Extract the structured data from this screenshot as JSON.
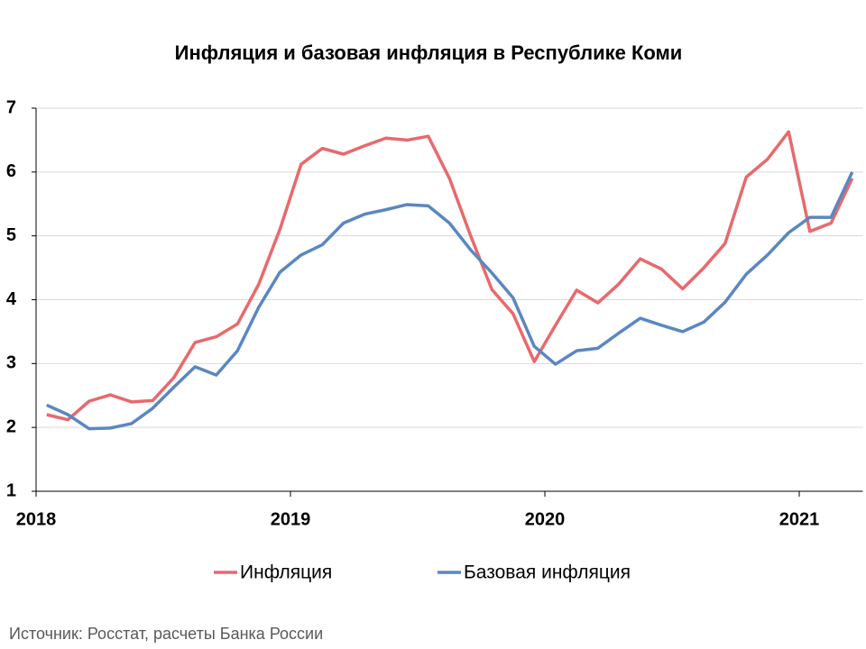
{
  "chart_data": {
    "type": "line",
    "title": "Инфляция и базовая инфляция в Республике Коми",
    "source": "Источник: Росстат, расчеты Банка России",
    "categories": [
      "2018",
      null,
      null,
      null,
      null,
      null,
      null,
      null,
      null,
      null,
      null,
      null,
      "2019",
      null,
      null,
      null,
      null,
      null,
      null,
      null,
      null,
      null,
      null,
      null,
      "2020",
      null,
      null,
      null,
      null,
      null,
      null,
      null,
      null,
      null,
      null,
      null,
      "2021",
      null,
      null
    ],
    "series": [
      {
        "name": "Инфляция",
        "color": "#e8696c",
        "values": [
          2.2,
          2.12,
          2.41,
          2.51,
          2.4,
          2.42,
          2.78,
          3.33,
          3.42,
          3.62,
          4.24,
          5.1,
          6.12,
          6.37,
          6.28,
          6.41,
          6.53,
          6.5,
          6.56,
          5.9,
          5.0,
          4.16,
          3.78,
          3.03,
          3.6,
          4.15,
          3.95,
          4.25,
          4.64,
          4.48,
          4.17,
          4.5,
          4.88,
          5.92,
          6.2,
          6.63,
          5.07,
          5.2,
          5.9
        ]
      },
      {
        "name": "Базовая инфляция",
        "color": "#5b87c0",
        "values": [
          2.35,
          2.2,
          1.98,
          1.99,
          2.06,
          2.3,
          2.63,
          2.95,
          2.82,
          3.2,
          3.88,
          4.43,
          4.7,
          4.86,
          5.2,
          5.34,
          5.41,
          5.49,
          5.47,
          5.2,
          4.78,
          4.42,
          4.03,
          3.27,
          2.99,
          3.2,
          3.24,
          3.48,
          3.71,
          3.6,
          3.5,
          3.65,
          3.96,
          4.4,
          4.7,
          5.05,
          5.29,
          5.29,
          6.0
        ]
      }
    ],
    "ylim": [
      1,
      7
    ],
    "yticks": [
      1,
      2,
      3,
      4,
      5,
      6,
      7
    ],
    "grid": true,
    "legend": "bottom"
  }
}
